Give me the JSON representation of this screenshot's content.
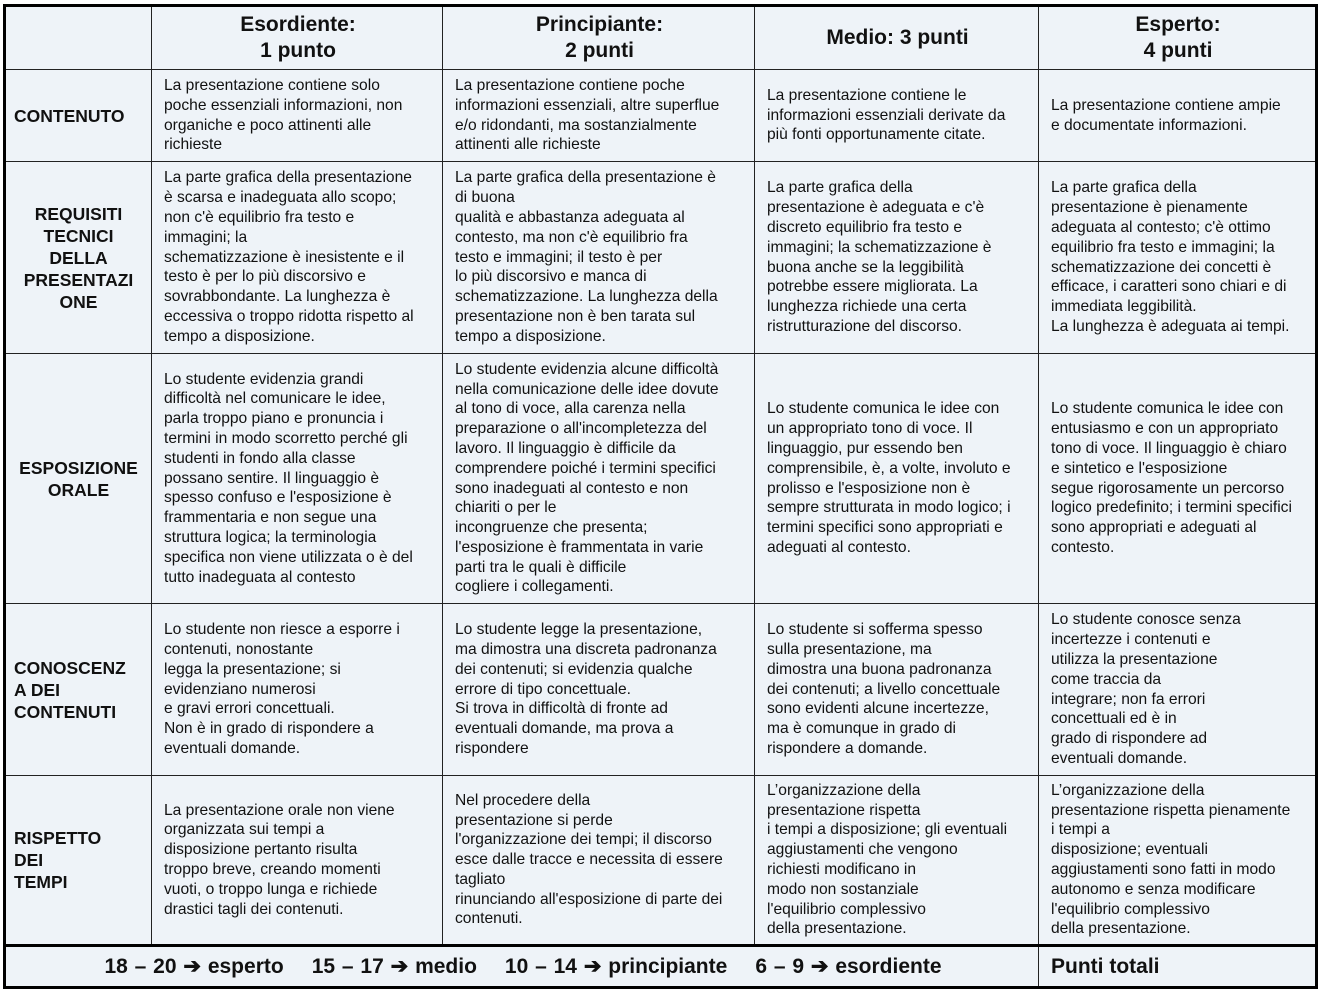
{
  "header": {
    "corner": "",
    "levels": [
      [
        "Esordiente:",
        "1 punto"
      ],
      [
        "Principiante:",
        "2 punti"
      ],
      [
        "Medio: 3 punti"
      ],
      [
        "Esperto:",
        "4 punti"
      ]
    ]
  },
  "rows": [
    {
      "label": [
        "CONTENUTO"
      ],
      "center": false,
      "cells": [
        [
          "La presentazione contiene solo",
          "poche essenziali informazioni, non",
          "organiche e poco attinenti alle",
          "richieste"
        ],
        [
          "La presentazione contiene poche",
          "informazioni essenziali, altre superflue",
          "e/o ridondanti, ma sostanzialmente",
          "attinenti alle richieste"
        ],
        [
          "La presentazione contiene le",
          "informazioni essenziali derivate da",
          "più fonti opportunamente citate."
        ],
        [
          "La presentazione contiene ampie",
          "e documentate informazioni."
        ]
      ]
    },
    {
      "label": [
        "REQUISITI",
        "TECNICI",
        "DELLA",
        "PRESENTAZI",
        "ONE"
      ],
      "center": true,
      "cells": [
        [
          "La parte grafica della presentazione",
          "è scarsa e inadeguata allo scopo;",
          "non c'è equilibrio fra testo e",
          "immagini; la",
          "schematizzazione è inesistente e il",
          "testo è per lo più discorsivo e",
          "sovrabbondante. La lunghezza è",
          "eccessiva o troppo ridotta rispetto al",
          "tempo a disposizione."
        ],
        [
          "La parte grafica della presentazione è",
          "di buona",
          "qualità e abbastanza adeguata al",
          "contesto, ma non c'è equilibrio fra",
          "testo e immagini; il testo è per",
          "lo più discorsivo e manca di",
          "schematizzazione. La lunghezza della",
          "presentazione non è ben tarata sul",
          "tempo a disposizione."
        ],
        [
          "La parte grafica della",
          "presentazione è adeguata e c'è",
          "discreto equilibrio fra testo e",
          "immagini; la schematizzazione è",
          "buona anche se la leggibilità",
          "potrebbe essere migliorata. La",
          "lunghezza richiede una certa",
          "ristrutturazione del discorso."
        ],
        [
          "La parte grafica della",
          "presentazione è pienamente",
          "adeguata al contesto; c'è ottimo",
          "equilibrio fra testo e immagini; la",
          "schematizzazione dei concetti è",
          "efficace, i caratteri sono chiari e di",
          "immediata leggibilità.",
          "La lunghezza è adeguata ai tempi."
        ]
      ]
    },
    {
      "label": [
        "ESPOSIZIONE",
        "ORALE"
      ],
      "center": true,
      "cells": [
        [
          "Lo studente evidenzia grandi",
          "difficoltà nel comunicare le idee,",
          "parla troppo piano e pronuncia i",
          "termini in modo scorretto perché gli",
          "studenti in fondo alla classe",
          "possano sentire. Il linguaggio è",
          "spesso confuso e l'esposizione è",
          "frammentaria e non segue una",
          "struttura logica; la terminologia",
          "specifica non viene utilizzata o è del",
          "tutto inadeguata al contesto"
        ],
        [
          "Lo studente evidenzia alcune difficoltà",
          "nella comunicazione delle idee dovute",
          "al tono di voce, alla carenza nella",
          "preparazione o all'incompletezza del",
          "lavoro. Il linguaggio è difficile da",
          "comprendere poiché i termini specifici",
          "sono inadeguati al contesto e non",
          "chiariti o per le",
          "incongruenze che presenta;",
          "l'esposizione è frammentata in varie",
          "parti tra le quali è difficile",
          "cogliere i collegamenti."
        ],
        [
          "Lo studente comunica le idee con",
          "un appropriato tono di voce. Il",
          "linguaggio, pur essendo ben",
          "comprensibile, è, a volte, involuto e",
          "prolisso e l'esposizione non è",
          "sempre strutturata in modo logico; i",
          "termini specifici sono appropriati e",
          "adeguati al contesto."
        ],
        [
          "Lo studente comunica le idee con",
          "entusiasmo e con un appropriato",
          "tono di voce. Il linguaggio è chiaro",
          "e sintetico e l'esposizione",
          "segue rigorosamente un percorso",
          "logico predefinito; i termini specifici",
          "sono appropriati e adeguati al",
          "contesto."
        ]
      ]
    },
    {
      "label": [
        "CONOSCENZ",
        "A DEI",
        "CONTENUTI"
      ],
      "center": false,
      "cells": [
        [
          "Lo studente non riesce a esporre i",
          "contenuti, nonostante",
          "legga la presentazione; si",
          "evidenziano numerosi",
          "e gravi errori concettuali.",
          "Non è in grado di rispondere a",
          "eventuali domande."
        ],
        [
          "Lo studente legge la presentazione,",
          "ma dimostra una discreta padronanza",
          "dei contenuti; si evidenzia qualche",
          "errore di tipo concettuale.",
          "Si trova in difficoltà di fronte ad",
          "eventuali domande, ma prova a",
          "rispondere"
        ],
        [
          "Lo studente si sofferma spesso",
          "sulla presentazione, ma",
          "dimostra una buona padronanza",
          "dei contenuti; a livello concettuale",
          "sono evidenti alcune incertezze,",
          "ma è comunque in grado di",
          "rispondere a domande."
        ],
        [
          "Lo studente conosce senza",
          "incertezze i contenuti e",
          "utilizza la presentazione",
          "come traccia da",
          "integrare; non fa errori",
          "concettuali ed è in",
          "grado di rispondere ad",
          "eventuali domande."
        ]
      ]
    },
    {
      "label": [
        "RISPETTO",
        "DEI",
        "TEMPI"
      ],
      "center": false,
      "cells": [
        [
          "La presentazione orale non viene",
          "organizzata sui tempi a",
          "disposizione pertanto risulta",
          "troppo breve, creando momenti",
          "vuoti, o troppo lunga e richiede",
          "drastici tagli dei contenuti."
        ],
        [
          "Nel procedere della",
          "presentazione si perde",
          "l'organizzazione dei tempi; il discorso",
          "esce dalle tracce e necessita di essere",
          "tagliato",
          "rinunciando all'esposizione di parte dei",
          "contenuti."
        ],
        [
          "L’organizzazione della",
          "presentazione rispetta",
          "i tempi a disposizione; gli eventuali",
          "aggiustamenti che vengono",
          "richiesti  modificano in",
          "modo non sostanziale",
          "l'equilibrio complessivo",
          "della presentazione."
        ],
        [
          "L’organizzazione della",
          "presentazione rispetta pienamente",
          "i tempi a",
          "disposizione; eventuali",
          "aggiustamenti sono fatti in modo",
          "autonomo e senza modificare",
          "l'equilibrio complessivo",
          "della presentazione."
        ]
      ]
    }
  ],
  "footer": {
    "scale": [
      {
        "range": "18 – 20",
        "arrow": "➔",
        "level": "esperto"
      },
      {
        "range": "15 – 17",
        "arrow": "➔",
        "level": "medio"
      },
      {
        "range": "10 – 14",
        "arrow": "➔",
        "level": "principiante"
      },
      {
        "range": "6 – 9",
        "arrow": "➔",
        "level": "esordiente"
      }
    ],
    "total_label": "Punti totali"
  }
}
